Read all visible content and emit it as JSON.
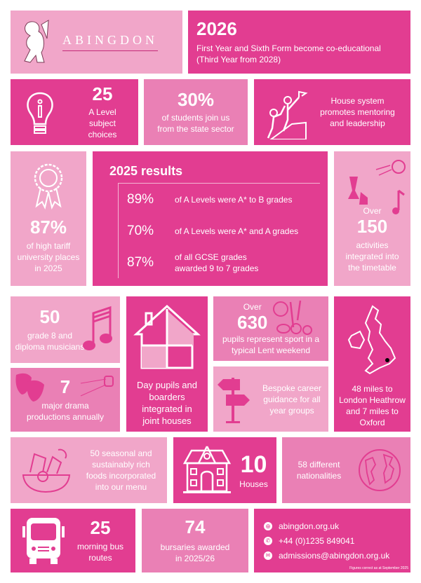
{
  "colors": {
    "dark": "#e23d91",
    "medium": "#ea80b5",
    "light": "#f1a6c9"
  },
  "logo": {
    "text": "ABINGDON"
  },
  "coed": {
    "year": "2026",
    "text": "First Year and Sixth Form become co-educational (Third Year from 2028)"
  },
  "alevel": {
    "value": "25",
    "text": "A Level subject choices",
    "icon": "lightbulb-icon"
  },
  "state": {
    "value": "30%",
    "text": "of students join us from the state sector"
  },
  "house_system": {
    "text": "House system promotes mentoring and leadership",
    "icon": "climbing-people-icon"
  },
  "tariff": {
    "value": "87%",
    "text": "of high tariff university places in 2025",
    "icon": "rosette-icon"
  },
  "results": {
    "title": "2025 results",
    "rows": [
      {
        "value": "89%",
        "text": "of A Levels were A* to B grades"
      },
      {
        "value": "70%",
        "text": "of A Levels were A* and A grades"
      },
      {
        "value": "87%",
        "text": "of all GCSE grades awarded 9 to 7 grades"
      }
    ]
  },
  "activities": {
    "prefix": "Over",
    "value": "150",
    "text": "activities integrated into the timetable"
  },
  "music": {
    "value": "50",
    "text": "grade 8 and diploma musicians"
  },
  "drama": {
    "value": "7",
    "text": "major drama productions annually"
  },
  "houses_integrated": {
    "text": "Day pupils and boarders integrated in joint houses"
  },
  "sport": {
    "prefix": "Over",
    "value": "630",
    "text": "pupils represent sport in a typical Lent weekend"
  },
  "career": {
    "text": "Bespoke career guidance for all year groups"
  },
  "location": {
    "text": "48 miles to London Heathrow and 7 miles to Oxford"
  },
  "food": {
    "text": "50 seasonal and sustainably rich foods incorporated into our menu"
  },
  "houses": {
    "value": "10",
    "text": "Houses"
  },
  "nationalities": {
    "text": "58 different nationalities"
  },
  "bus": {
    "value": "25",
    "text": "morning bus routes"
  },
  "bursaries": {
    "value": "74",
    "text": "bursaries awarded in 2025/26"
  },
  "contact": {
    "website": "abingdon.org.uk",
    "phone": "+44 (0)1235 849041",
    "email": "admissions@abingdon.org.uk",
    "note": "Figures correct as at September 2025"
  }
}
